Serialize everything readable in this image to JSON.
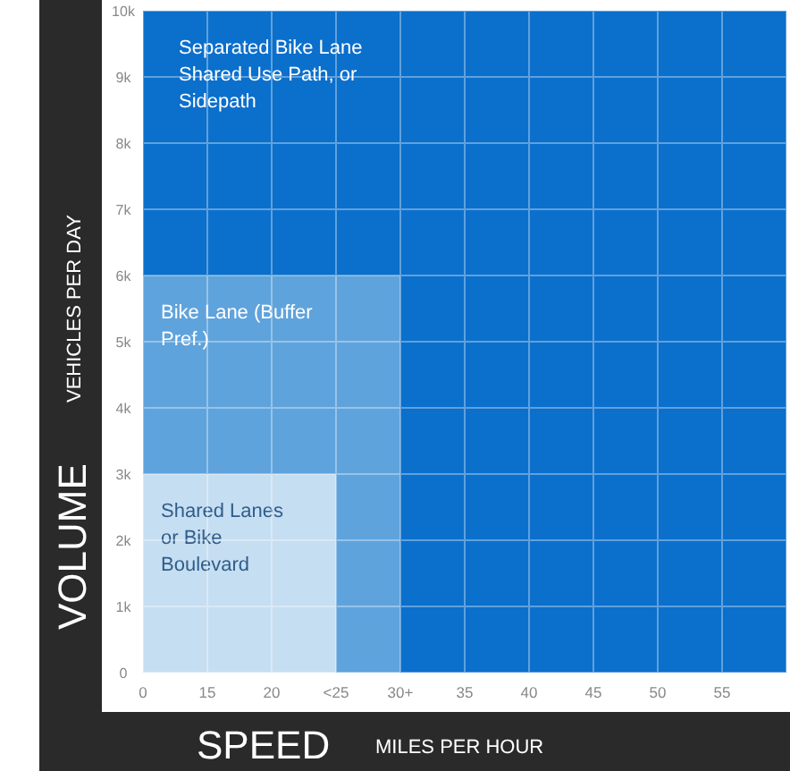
{
  "chart_data": {
    "type": "area",
    "stacked": true,
    "xlabel": "SPEED",
    "ylabel": "VOLUME",
    "annotations": [
      "MILES PER HOUR",
      "VEHICLES PER DAY"
    ],
    "categories": [
      "0",
      "15",
      "20",
      "<25",
      "30+",
      "35",
      "40",
      "45",
      "50",
      "55",
      null
    ],
    "ylim": [
      0,
      10000
    ],
    "yticks": [
      0,
      {
        "value": 1000,
        "label": "1k"
      },
      {
        "value": 2000,
        "label": "2k"
      },
      {
        "value": 3000,
        "label": "3k"
      },
      {
        "value": 4000,
        "label": "4k"
      },
      {
        "value": 5000,
        "label": "5k"
      },
      {
        "value": 6000,
        "label": "6k"
      },
      {
        "value": 7000,
        "label": "7k"
      },
      {
        "value": 8000,
        "label": "8k"
      },
      {
        "value": 9000,
        "label": "9k"
      },
      {
        "value": 10000,
        "label": "10k"
      }
    ],
    "grid": true,
    "series": [
      {
        "name": "Shared Lanes or Bike Boulevard",
        "color": "#c6def2",
        "values": [
          3000,
          3000,
          3000,
          3000,
          0,
          0,
          0,
          0,
          0,
          0,
          0
        ]
      },
      {
        "name": "Bike Lane (Buffer Pref.)",
        "color": "#5fa3dc",
        "values": [
          3000,
          3000,
          3000,
          3000,
          6000,
          0,
          0,
          0,
          0,
          0,
          0
        ]
      },
      {
        "name": "Separated Bike Lane Shared Use Path, or Sidepath",
        "color": "#0b6fcc",
        "values": [
          4000,
          4000,
          4000,
          4000,
          4000,
          10000,
          10000,
          10000,
          10000,
          10000,
          10000
        ]
      }
    ]
  }
}
